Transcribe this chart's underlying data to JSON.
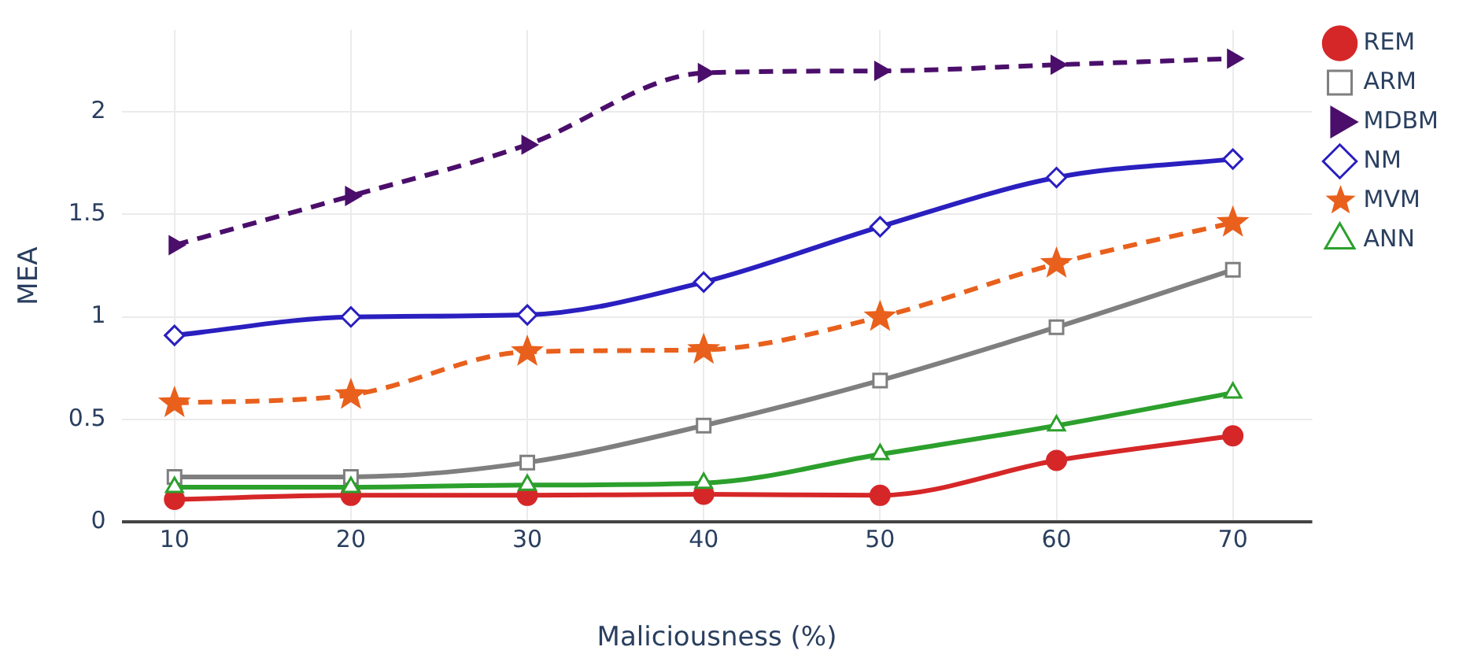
{
  "chart_data": {
    "type": "line",
    "xlabel": "Maliciousness (%)",
    "ylabel": "MEA",
    "x": [
      10,
      20,
      30,
      40,
      50,
      60,
      70
    ],
    "xlim": [
      7,
      74.5
    ],
    "xticks": [
      10,
      20,
      30,
      40,
      50,
      60,
      70
    ],
    "ylim": [
      0,
      2.4
    ],
    "yticks": [
      0,
      0.5,
      1,
      1.5,
      2
    ],
    "grid": true,
    "legend": "top right",
    "series": [
      {
        "name": "REM",
        "color": "#d62728",
        "marker": "circle",
        "line_style": "solid",
        "values": [
          0.11,
          0.13,
          0.13,
          0.135,
          0.13,
          0.3,
          0.42
        ]
      },
      {
        "name": "ARM",
        "color": "#7f7f7f",
        "marker": "square",
        "line_style": "solid",
        "values": [
          0.22,
          0.22,
          0.29,
          0.47,
          0.69,
          0.95,
          1.23
        ]
      },
      {
        "name": "MDBM",
        "color": "#4b0e6b",
        "marker": "triangle",
        "line_style": "dashed",
        "values": [
          1.35,
          1.59,
          1.84,
          2.19,
          2.2,
          2.23,
          2.26
        ]
      },
      {
        "name": "NM",
        "color": "#2a1fbf",
        "marker": "diamond",
        "line_style": "solid",
        "values": [
          0.91,
          1.0,
          1.01,
          1.17,
          1.44,
          1.68,
          1.77
        ]
      },
      {
        "name": "MVM",
        "color": "#e8601c",
        "marker": "star",
        "line_style": "dashed",
        "values": [
          0.58,
          0.62,
          0.83,
          0.84,
          1.0,
          1.26,
          1.46
        ]
      },
      {
        "name": "ANN",
        "color": "#2ca02c",
        "marker": "triangle-up",
        "line_style": "solid",
        "values": [
          0.17,
          0.17,
          0.18,
          0.19,
          0.33,
          0.47,
          0.63
        ]
      }
    ]
  }
}
